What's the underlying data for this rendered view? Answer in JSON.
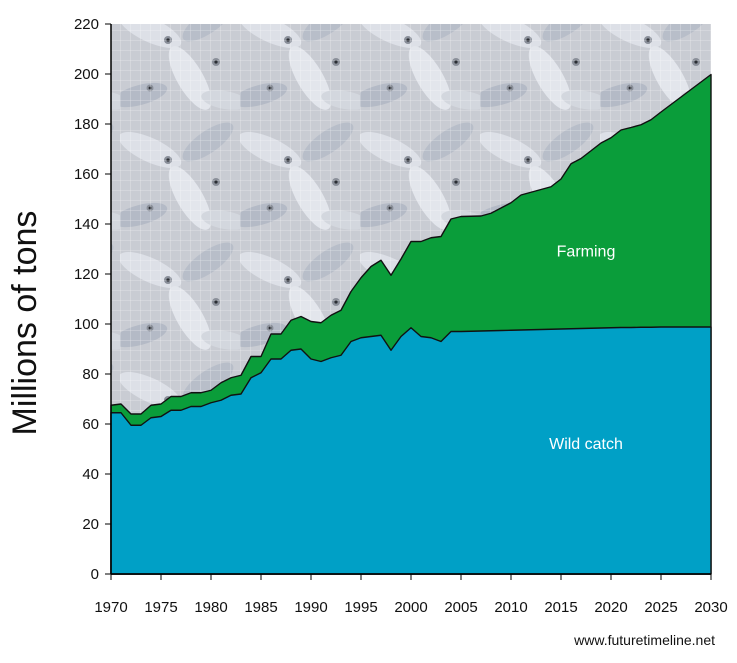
{
  "chart_data": {
    "type": "area",
    "title": "",
    "xlabel": "",
    "ylabel": "Millions of tons",
    "xlim": [
      1970,
      2030
    ],
    "ylim": [
      0,
      220
    ],
    "x_ticks": [
      1970,
      1975,
      1980,
      1985,
      1990,
      1995,
      2000,
      2005,
      2010,
      2015,
      2020,
      2025,
      2030
    ],
    "y_ticks": [
      0,
      20,
      40,
      60,
      80,
      100,
      120,
      140,
      160,
      180,
      200,
      220
    ],
    "grid": true,
    "stacked": true,
    "x": [
      1970,
      1971,
      1972,
      1973,
      1974,
      1975,
      1976,
      1977,
      1978,
      1979,
      1980,
      1981,
      1982,
      1983,
      1984,
      1985,
      1986,
      1987,
      1988,
      1989,
      1990,
      1991,
      1992,
      1993,
      1994,
      1995,
      1996,
      1997,
      1998,
      1999,
      2000,
      2001,
      2002,
      2003,
      2004,
      2005,
      2006,
      2007,
      2008,
      2009,
      2010,
      2011,
      2012,
      2013,
      2014,
      2015,
      2016,
      2017,
      2018,
      2019,
      2020,
      2021,
      2022,
      2023,
      2024,
      2025,
      2026,
      2027,
      2028,
      2029,
      2030
    ],
    "series": [
      {
        "name": "Wild catch",
        "color": "#00a0c6",
        "values": [
          64.5,
          64.5,
          59.5,
          59.5,
          62.5,
          63,
          65.5,
          65.5,
          67,
          67,
          68.5,
          69.5,
          71.5,
          72,
          78.5,
          80.5,
          86,
          86,
          89.5,
          90,
          86,
          85,
          86.5,
          87.5,
          93,
          94.5,
          95,
          95.5,
          89.5,
          95,
          98.5,
          95,
          94.5,
          93,
          97,
          97,
          97.1,
          97.2,
          97.3,
          97.4,
          97.5,
          97.6,
          97.7,
          97.8,
          97.9,
          98,
          98.1,
          98.2,
          98.3,
          98.4,
          98.5,
          98.6,
          98.6,
          98.7,
          98.7,
          98.8,
          98.8,
          98.8,
          98.8,
          98.8,
          98.8
        ]
      },
      {
        "name": "Farming",
        "color": "#0a9d3a",
        "values": [
          3,
          3.5,
          4.5,
          4.5,
          5,
          5,
          5.5,
          5.5,
          5.5,
          5.5,
          5,
          7,
          7,
          7.5,
          8.5,
          6.5,
          10,
          10,
          12,
          13,
          15,
          15.5,
          17,
          18,
          20,
          24,
          28,
          30,
          30,
          31,
          34.5,
          38,
          40,
          42,
          45,
          46,
          46,
          46,
          47,
          49,
          51,
          54,
          55,
          56,
          57,
          60,
          66,
          68,
          71,
          74,
          76,
          79,
          80,
          81,
          83,
          86,
          89,
          92,
          95,
          98,
          101
        ]
      }
    ],
    "annotations": [
      {
        "text": "Farming",
        "x": 2017.5,
        "y": 127
      },
      {
        "text": "Wild catch",
        "x": 2017.5,
        "y": 50
      }
    ],
    "background": "fish-photo-texture"
  },
  "credit": "www.futuretimeline.net"
}
